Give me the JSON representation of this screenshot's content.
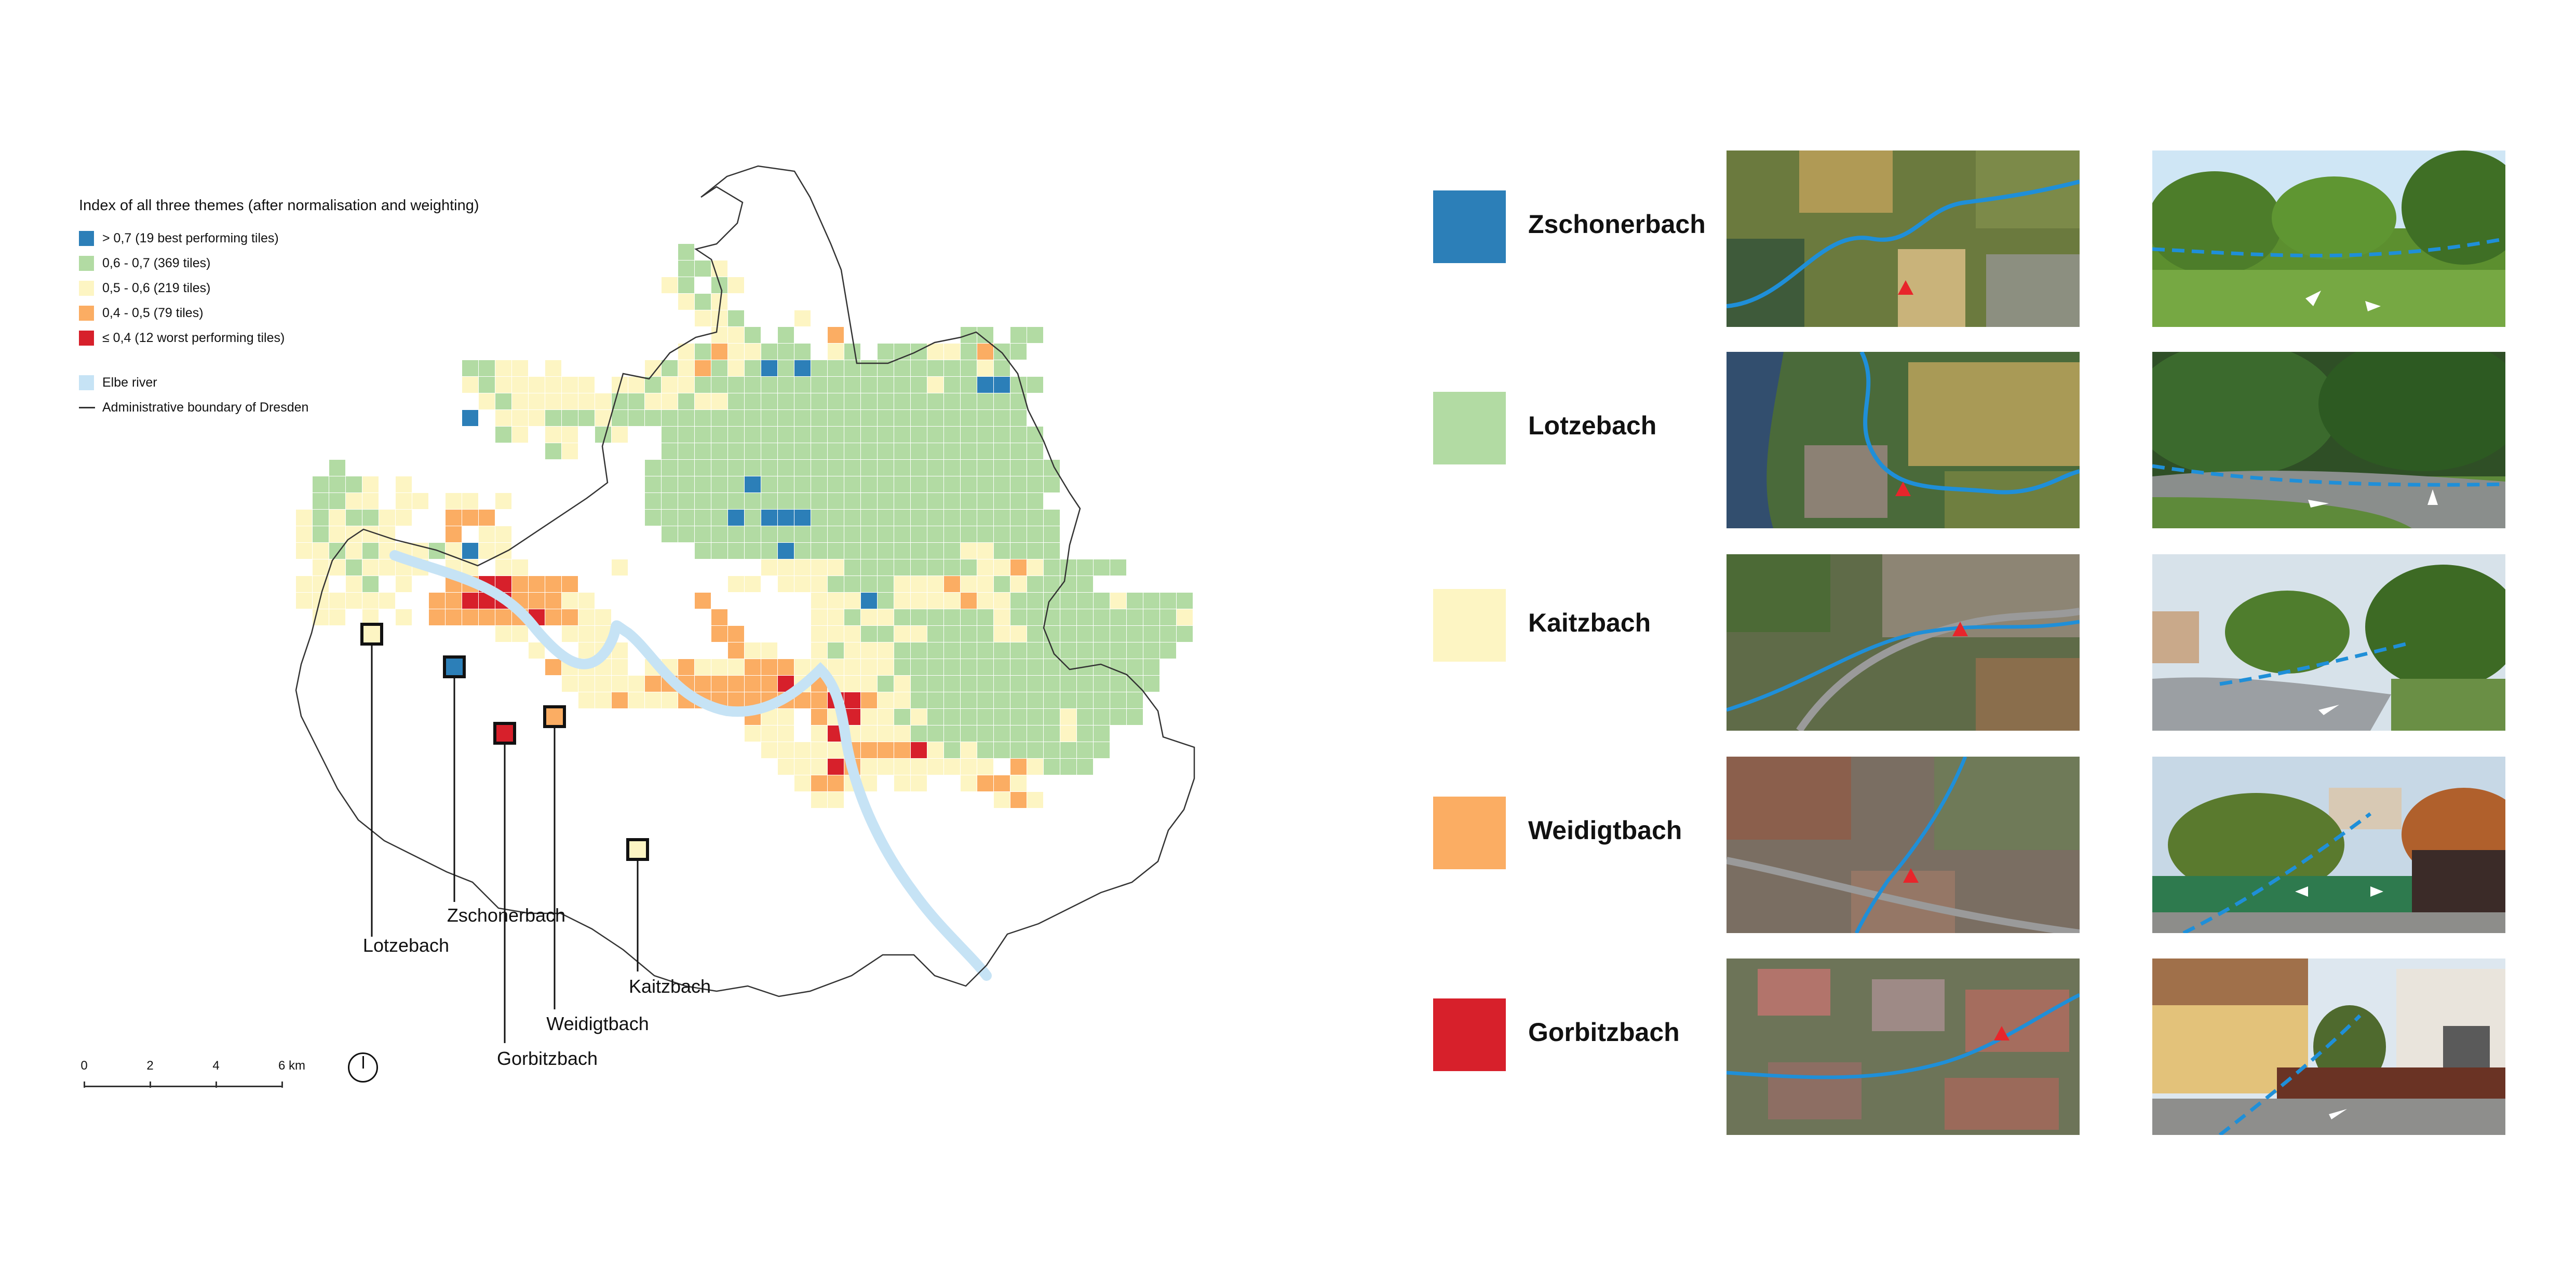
{
  "legend": {
    "title": "Index of all three themes (after normalisation and weighting)",
    "classes": [
      {
        "label": "> 0,7 (19 best performing tiles)",
        "color": "#2c7fb8"
      },
      {
        "label": "0,6 - 0,7 (369 tiles)",
        "color": "#b2dba3"
      },
      {
        "label": "0,5 - 0,6 (219 tiles)",
        "color": "#fdf5c3"
      },
      {
        "label": "0,4 - 0,5 (79 tiles)",
        "color": "#fbad63"
      },
      {
        "label": "≤ 0,4 (12 worst performing tiles)",
        "color": "#d7202b"
      }
    ],
    "river_label": "Elbe river",
    "river_color": "#c6e3f5",
    "boundary_label": "Administrative boundary of Dresden"
  },
  "map": {
    "creek_labels": {
      "lotzebach": "Lotzebach",
      "zschonerbach": "Zschonerbach",
      "gorbitzbach": "Gorbitzbach",
      "weidigtbach": "Weidigtbach",
      "kaitzbach": "Kaitzbach"
    }
  },
  "scale_bar": {
    "ticks": [
      "0",
      "2",
      "4",
      "6 km"
    ]
  },
  "examples": [
    {
      "name": "Zschonerbach",
      "color": "#2c7fb8"
    },
    {
      "name": "Lotzebach",
      "color": "#b2dba3"
    },
    {
      "name": "Kaitzbach",
      "color": "#fdf5c3"
    },
    {
      "name": "Weidigtbach",
      "color": "#fbad63"
    },
    {
      "name": "Gorbitzbach",
      "color": "#d7202b"
    }
  ],
  "icons": [
    "north-arrow-icon"
  ]
}
